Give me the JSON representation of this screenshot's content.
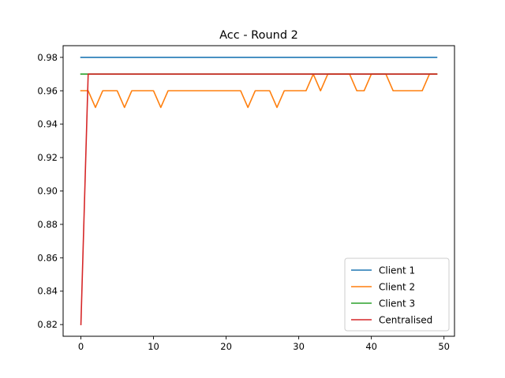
{
  "chart_data": {
    "type": "line",
    "title": "Acc - Round 2",
    "xlabel": "",
    "ylabel": "",
    "xlim": [
      -2.45,
      51.45
    ],
    "ylim": [
      0.813,
      0.987
    ],
    "xticks": [
      0,
      10,
      20,
      30,
      40,
      50
    ],
    "yticks": [
      0.82,
      0.84,
      0.86,
      0.88,
      0.9,
      0.92,
      0.94,
      0.96,
      0.98
    ],
    "ytick_labels": [
      "0.82",
      "0.84",
      "0.86",
      "0.88",
      "0.90",
      "0.92",
      "0.94",
      "0.96",
      "0.98"
    ],
    "grid": false,
    "legend_position": "lower-right",
    "x": [
      0,
      1,
      2,
      3,
      4,
      5,
      6,
      7,
      8,
      9,
      10,
      11,
      12,
      13,
      14,
      15,
      16,
      17,
      18,
      19,
      20,
      21,
      22,
      23,
      24,
      25,
      26,
      27,
      28,
      29,
      30,
      31,
      32,
      33,
      34,
      35,
      36,
      37,
      38,
      39,
      40,
      41,
      42,
      43,
      44,
      45,
      46,
      47,
      48,
      49
    ],
    "series": [
      {
        "name": "Client 1",
        "color": "#1f77b4",
        "values": [
          0.98,
          0.98,
          0.98,
          0.98,
          0.98,
          0.98,
          0.98,
          0.98,
          0.98,
          0.98,
          0.98,
          0.98,
          0.98,
          0.98,
          0.98,
          0.98,
          0.98,
          0.98,
          0.98,
          0.98,
          0.98,
          0.98,
          0.98,
          0.98,
          0.98,
          0.98,
          0.98,
          0.98,
          0.98,
          0.98,
          0.98,
          0.98,
          0.98,
          0.98,
          0.98,
          0.98,
          0.98,
          0.98,
          0.98,
          0.98,
          0.98,
          0.98,
          0.98,
          0.98,
          0.98,
          0.98,
          0.98,
          0.98,
          0.98,
          0.98
        ]
      },
      {
        "name": "Client 2",
        "color": "#ff7f0e",
        "values": [
          0.96,
          0.96,
          0.95,
          0.96,
          0.96,
          0.96,
          0.95,
          0.96,
          0.96,
          0.96,
          0.96,
          0.95,
          0.96,
          0.96,
          0.96,
          0.96,
          0.96,
          0.96,
          0.96,
          0.96,
          0.96,
          0.96,
          0.96,
          0.95,
          0.96,
          0.96,
          0.96,
          0.95,
          0.96,
          0.96,
          0.96,
          0.96,
          0.97,
          0.96,
          0.97,
          0.97,
          0.97,
          0.97,
          0.96,
          0.96,
          0.97,
          0.97,
          0.97,
          0.96,
          0.96,
          0.96,
          0.96,
          0.96,
          0.97,
          0.97
        ]
      },
      {
        "name": "Client 3",
        "color": "#2ca02c",
        "values": [
          0.97,
          0.97,
          0.97,
          0.97,
          0.97,
          0.97,
          0.97,
          0.97,
          0.97,
          0.97,
          0.97,
          0.97,
          0.97,
          0.97,
          0.97,
          0.97,
          0.97,
          0.97,
          0.97,
          0.97,
          0.97,
          0.97,
          0.97,
          0.97,
          0.97,
          0.97,
          0.97,
          0.97,
          0.97,
          0.97,
          0.97,
          0.97,
          0.97,
          0.97,
          0.97,
          0.97,
          0.97,
          0.97,
          0.97,
          0.97,
          0.97,
          0.97,
          0.97,
          0.97,
          0.97,
          0.97,
          0.97,
          0.97,
          0.97,
          0.97
        ]
      },
      {
        "name": "Centralised",
        "color": "#d62728",
        "values": [
          0.82,
          0.97,
          0.97,
          0.97,
          0.97,
          0.97,
          0.97,
          0.97,
          0.97,
          0.97,
          0.97,
          0.97,
          0.97,
          0.97,
          0.97,
          0.97,
          0.97,
          0.97,
          0.97,
          0.97,
          0.97,
          0.97,
          0.97,
          0.97,
          0.97,
          0.97,
          0.97,
          0.97,
          0.97,
          0.97,
          0.97,
          0.97,
          0.97,
          0.97,
          0.97,
          0.97,
          0.97,
          0.97,
          0.97,
          0.97,
          0.97,
          0.97,
          0.97,
          0.97,
          0.97,
          0.97,
          0.97,
          0.97,
          0.97,
          0.97
        ]
      }
    ]
  }
}
